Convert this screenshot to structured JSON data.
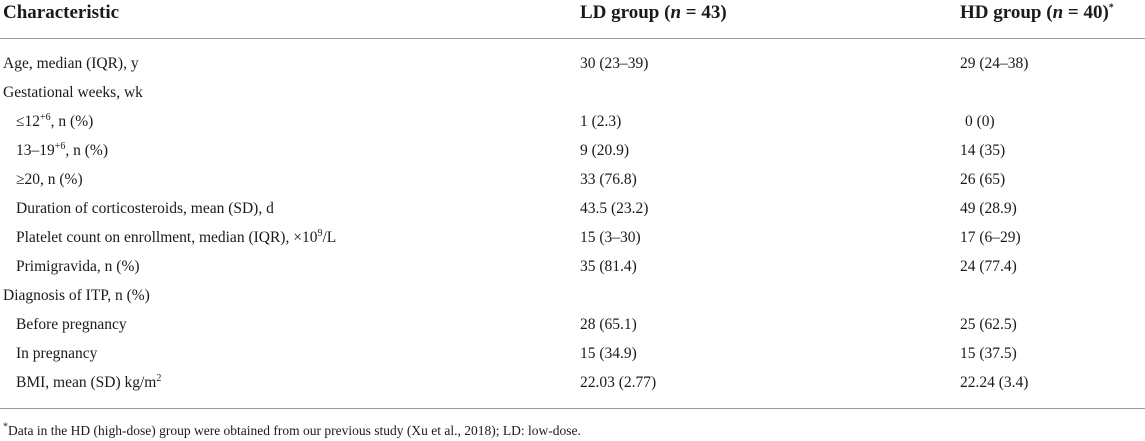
{
  "header": {
    "col0": "Characteristic",
    "col1_prefix": "LD group (",
    "col1_n": "n",
    "col1_suffix": " = 43)",
    "col2_prefix": "HD group (",
    "col2_n": "n",
    "col2_suffix": " = 40)",
    "col2_mark": "*"
  },
  "rows": [
    {
      "label": "Age, median (IQR), y",
      "ld": "30 (23–39)",
      "hd": "29 (24–38)"
    },
    {
      "label": "Gestational weeks, wk",
      "ld": "",
      "hd": ""
    },
    {
      "label_pre": "≤12",
      "label_sup": "+6",
      "label_post": ", n (%)",
      "ld": "1 (2.3)",
      "hd": "0 (0)"
    },
    {
      "label_pre": "13–19",
      "label_sup": "+6",
      "label_post": ", n (%)",
      "ld": "9 (20.9)",
      "hd": "14 (35)"
    },
    {
      "label": "≥20, n (%)",
      "ld": "33 (76.8)",
      "hd": "26 (65)"
    },
    {
      "label": "Duration of corticosteroids, mean (SD), d",
      "ld": "43.5 (23.2)",
      "hd": "49 (28.9)"
    },
    {
      "label_pre": "Platelet count on enrollment, median (IQR), ×10",
      "label_sup": "9",
      "label_post": "/L",
      "ld": "15 (3–30)",
      "hd": "17 (6–29)"
    },
    {
      "label": "Primigravida, n (%)",
      "ld": "35 (81.4)",
      "hd": "24 (77.4)"
    },
    {
      "label": "Diagnosis of ITP, n (%)",
      "ld": "",
      "hd": ""
    },
    {
      "label": "Before pregnancy",
      "ld": "28 (65.1)",
      "hd": "25 (62.5)"
    },
    {
      "label": "In pregnancy",
      "ld": "15 (34.9)",
      "hd": "15 (37.5)"
    },
    {
      "label_pre": "BMI, mean (SD) kg/m",
      "label_sup": "2",
      "label_post": "",
      "ld": "22.03 (2.77)",
      "hd": "22.24 (3.4)"
    }
  ],
  "footnote": {
    "mark": "*",
    "text": "Data in the HD (high-dose) group were obtained from our previous study (Xu et al., 2018); LD: low-dose."
  }
}
